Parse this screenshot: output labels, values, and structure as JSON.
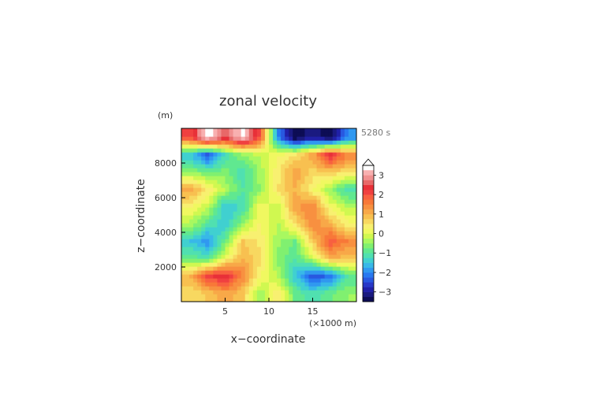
{
  "chart_data": {
    "type": "heatmap",
    "title": "zonal velocity",
    "time_label": "5280 s",
    "xlabel": "x−coordinate",
    "ylabel": "z−coordinate",
    "x_unit": "(×1000 m)",
    "y_unit": "(m)",
    "xlim": [
      0,
      20
    ],
    "ylim": [
      0,
      10000
    ],
    "x_ticks": [
      5,
      10,
      15
    ],
    "y_ticks": [
      2000,
      4000,
      6000,
      8000
    ],
    "grid": false,
    "colorbar": {
      "position": "right",
      "ticks": [
        3,
        2,
        1,
        0,
        -1,
        -2,
        -3
      ],
      "levels": [
        -3.5,
        -3.25,
        -3,
        -2.75,
        -2.5,
        -2.25,
        -2,
        -1.75,
        -1.5,
        -1.25,
        -1,
        -0.75,
        -0.5,
        -0.25,
        0,
        0.25,
        0.5,
        0.75,
        1,
        1.25,
        1.5,
        1.75,
        2,
        2.25,
        2.5,
        2.75,
        3,
        3.25,
        3.5
      ],
      "colors": [
        "#0d0d55",
        "#1a1a80",
        "#2020a8",
        "#2838c8",
        "#2858e0",
        "#2878f0",
        "#3098f0",
        "#38b8e8",
        "#40d0d0",
        "#50e0b0",
        "#60e890",
        "#80f070",
        "#a8f860",
        "#d0f850",
        "#f0f860",
        "#f8f070",
        "#f8d860",
        "#f8c050",
        "#f8a848",
        "#f89040",
        "#f87838",
        "#f86040",
        "#f04040",
        "#e83038",
        "#e86868",
        "#f09090",
        "#f8b0b0",
        "#ffffff"
      ]
    },
    "field": {
      "description_levels": "zonal velocity (colour scale units)",
      "x": [
        1,
        3,
        5,
        7,
        9,
        11,
        13,
        15,
        17,
        19
      ],
      "z": [
        500,
        1500,
        2500,
        3500,
        4500,
        5500,
        6500,
        7500,
        8500,
        9500
      ],
      "values": [
        [
          0.5,
          0.8,
          1.2,
          0.8,
          -0.5,
          0.5,
          -0.8,
          -1.2,
          -0.8,
          -0.5
        ],
        [
          1.0,
          2.2,
          2.5,
          1.5,
          0.3,
          -0.3,
          -1.5,
          -2.5,
          -2.2,
          -1.0
        ],
        [
          -0.8,
          -1.0,
          0.2,
          1.0,
          0.6,
          -0.6,
          -1.0,
          -0.2,
          1.0,
          0.8
        ],
        [
          -1.5,
          -2.0,
          -0.8,
          0.8,
          0.4,
          -0.4,
          -0.8,
          0.8,
          2.0,
          1.5
        ],
        [
          -0.3,
          -1.0,
          -1.5,
          -0.5,
          0.3,
          -0.3,
          0.5,
          1.5,
          1.0,
          0.3
        ],
        [
          0.3,
          -0.2,
          -1.5,
          -1.2,
          0.2,
          -0.2,
          1.2,
          1.5,
          0.2,
          -0.3
        ],
        [
          1.2,
          0.5,
          -0.3,
          -1.0,
          -0.5,
          0.5,
          1.0,
          0.3,
          -0.5,
          -1.2
        ],
        [
          -0.5,
          -0.8,
          -0.6,
          -1.2,
          -0.4,
          0.4,
          1.2,
          0.6,
          0.8,
          0.5
        ],
        [
          -1.5,
          -2.5,
          -1.2,
          -0.5,
          -0.2,
          0.2,
          0.5,
          1.2,
          2.5,
          1.5
        ],
        [
          2.0,
          3.6,
          2.5,
          3.4,
          2.0,
          -2.0,
          -3.6,
          -3.0,
          -3.6,
          -2.0
        ]
      ]
    }
  }
}
